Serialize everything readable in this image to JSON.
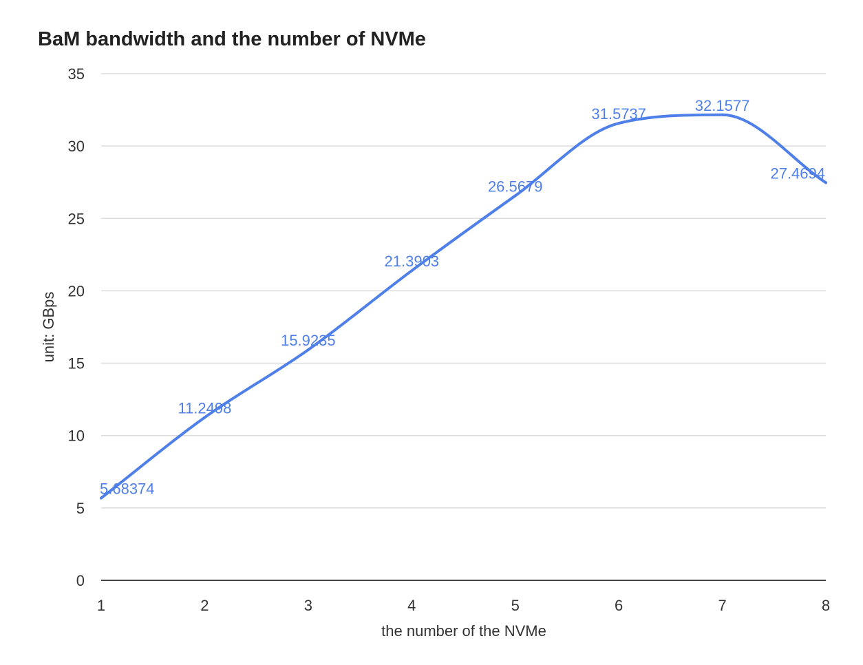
{
  "chart_data": {
    "type": "line",
    "title": "BaM bandwidth and the number of NVMe",
    "xlabel": "the number of the NVMe",
    "ylabel": "unit: GBps",
    "x": [
      1,
      2,
      3,
      4,
      5,
      6,
      7,
      8
    ],
    "x_tick_labels": [
      "1",
      "2",
      "3",
      "4",
      "5",
      "6",
      "7",
      "8"
    ],
    "ylim": [
      0,
      35
    ],
    "y_ticks": [
      0,
      5,
      10,
      15,
      20,
      25,
      30,
      35
    ],
    "y_tick_labels": [
      "0",
      "5",
      "10",
      "15",
      "20",
      "25",
      "30",
      "35"
    ],
    "grid": "horizontal",
    "smooth": true,
    "series": [
      {
        "values": [
          5.68374,
          11.2498,
          15.9235,
          21.3903,
          26.5679,
          31.5737,
          32.1577,
          27.4694
        ],
        "data_labels": [
          "5.68374",
          "11.2498",
          "15.9235",
          "21.3903",
          "26.5679",
          "31.5737",
          "32.1577",
          "27.4694"
        ],
        "color": "#4f7fe8"
      }
    ],
    "colors": {
      "line": "#4f7fe8",
      "grid": "#dcdcdc",
      "axis": "#444444"
    }
  }
}
